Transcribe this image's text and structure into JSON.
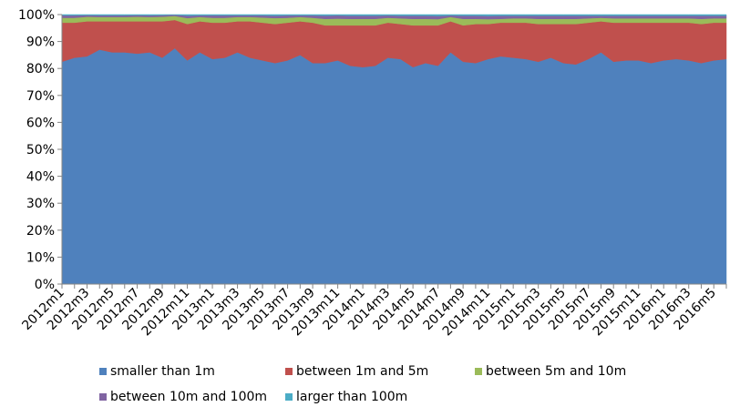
{
  "chart_data": {
    "type": "area",
    "stacking": "percent",
    "grid": false,
    "legend_position": "bottom",
    "xlabel": "",
    "ylabel": "",
    "ylim": [
      0,
      100
    ],
    "y_ticks": [
      "0%",
      "10%",
      "20%",
      "30%",
      "40%",
      "50%",
      "60%",
      "70%",
      "80%",
      "90%",
      "100%"
    ],
    "x": [
      "2012m1",
      "2012m2",
      "2012m3",
      "2012m4",
      "2012m5",
      "2012m6",
      "2012m7",
      "2012m8",
      "2012m9",
      "2012m10",
      "2012m11",
      "2012m12",
      "2013m1",
      "2013m2",
      "2013m3",
      "2013m4",
      "2013m5",
      "2013m6",
      "2013m7",
      "2013m8",
      "2013m9",
      "2013m10",
      "2013m11",
      "2013m12",
      "2014m1",
      "2014m2",
      "2014m3",
      "2014m4",
      "2014m5",
      "2014m6",
      "2014m7",
      "2014m8",
      "2014m9",
      "2014m10",
      "2014m11",
      "2014m12",
      "2015m1",
      "2015m2",
      "2015m3",
      "2015m4",
      "2015m5",
      "2015m6",
      "2015m7",
      "2015m8",
      "2015m9",
      "2015m10",
      "2015m11",
      "2015m12",
      "2016m1",
      "2016m2",
      "2016m3",
      "2016m4",
      "2016m5",
      "2016m6"
    ],
    "x_tick_labels": [
      "2012m1",
      "2012m3",
      "2012m5",
      "2012m7",
      "2012m9",
      "2012m11",
      "2013m1",
      "2013m3",
      "2013m5",
      "2013m7",
      "2013m9",
      "2013m11",
      "2014m1",
      "2014m3",
      "2014m5",
      "2014m7",
      "2014m9",
      "2014m11",
      "2015m1",
      "2015m3",
      "2015m5",
      "2015m7",
      "2015m9",
      "2015m11",
      "2016m1",
      "2016m3",
      "2016m5"
    ],
    "series": [
      {
        "name": "smaller than 1m",
        "color": "#4f81bd",
        "values": [
          82.5,
          84.0,
          84.5,
          87.0,
          86.0,
          86.0,
          85.5,
          86.0,
          84.0,
          87.5,
          83.0,
          86.0,
          83.5,
          84.0,
          86.0,
          84.0,
          83.0,
          82.0,
          83.0,
          85.0,
          82.0,
          82.0,
          83.0,
          81.0,
          80.5,
          81.0,
          84.0,
          83.5,
          80.5,
          82.0,
          81.0,
          86.0,
          82.5,
          82.0,
          83.5,
          84.5,
          84.0,
          83.5,
          82.5,
          84.0,
          82.0,
          81.5,
          83.5,
          86.0,
          82.5,
          83.0,
          83.0,
          82.0,
          83.0,
          83.5,
          83.0,
          82.0,
          83.0,
          83.5
        ]
      },
      {
        "name": "between 1m and 5m",
        "color": "#c0504d",
        "values": [
          14.5,
          13.0,
          13.0,
          10.5,
          11.5,
          11.5,
          12.0,
          11.5,
          13.5,
          10.5,
          13.5,
          11.5,
          13.5,
          13.0,
          11.5,
          13.5,
          14.0,
          14.5,
          14.0,
          12.5,
          15.0,
          14.0,
          13.0,
          15.0,
          15.5,
          15.0,
          13.0,
          13.0,
          15.5,
          14.0,
          15.0,
          11.5,
          13.5,
          14.5,
          13.0,
          12.5,
          13.0,
          13.5,
          14.0,
          12.5,
          14.5,
          15.0,
          13.5,
          11.5,
          14.5,
          14.0,
          14.0,
          15.0,
          14.0,
          13.5,
          14.0,
          14.5,
          14.0,
          13.5
        ]
      },
      {
        "name": "between 5m and 10m",
        "color": "#9bbb59",
        "values": [
          1.8,
          1.8,
          1.7,
          1.6,
          1.6,
          1.6,
          1.7,
          1.6,
          1.7,
          1.5,
          2.2,
          1.6,
          1.8,
          1.8,
          1.6,
          1.6,
          1.9,
          2.2,
          1.8,
          1.6,
          1.8,
          2.4,
          2.5,
          2.4,
          2.4,
          2.4,
          1.8,
          2.1,
          2.4,
          2.4,
          2.3,
          1.6,
          2.4,
          1.9,
          1.8,
          1.4,
          1.6,
          1.6,
          1.9,
          1.9,
          1.9,
          1.9,
          1.6,
          1.3,
          1.6,
          1.6,
          1.6,
          1.6,
          1.6,
          1.6,
          1.6,
          1.9,
          1.6,
          1.6
        ]
      },
      {
        "name": "between 10m and 100m",
        "color": "#8064a2",
        "values": [
          0.9,
          0.9,
          0.6,
          0.6,
          0.6,
          0.6,
          0.6,
          0.6,
          0.6,
          0.4,
          0.9,
          0.6,
          0.9,
          0.9,
          0.6,
          0.6,
          0.8,
          0.9,
          0.9,
          0.6,
          0.9,
          1.2,
          1.2,
          1.2,
          1.2,
          1.2,
          0.9,
          1.0,
          1.2,
          1.2,
          1.2,
          0.6,
          1.2,
          1.2,
          1.2,
          1.2,
          1.0,
          1.0,
          1.2,
          1.2,
          1.2,
          1.2,
          1.0,
          0.8,
          1.0,
          1.0,
          1.0,
          1.0,
          1.0,
          1.0,
          1.0,
          1.2,
          1.0,
          1.0
        ]
      },
      {
        "name": "larger than 100m",
        "color": "#4bacc6",
        "values": [
          0.3,
          0.3,
          0.2,
          0.3,
          0.3,
          0.3,
          0.2,
          0.3,
          0.2,
          0.1,
          0.4,
          0.3,
          0.3,
          0.3,
          0.3,
          0.3,
          0.3,
          0.4,
          0.3,
          0.3,
          0.3,
          0.4,
          0.3,
          0.4,
          0.4,
          0.4,
          0.3,
          0.4,
          0.4,
          0.4,
          0.5,
          0.3,
          0.4,
          0.4,
          0.5,
          0.4,
          0.4,
          0.4,
          0.4,
          0.4,
          0.4,
          0.4,
          0.4,
          0.4,
          0.4,
          0.4,
          0.4,
          0.4,
          0.4,
          0.4,
          0.4,
          0.4,
          0.4,
          0.4
        ]
      }
    ]
  }
}
